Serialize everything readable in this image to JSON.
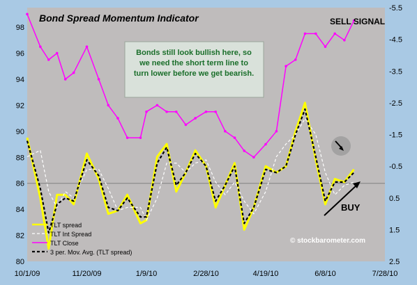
{
  "chart_data": {
    "type": "line",
    "title": "Bond Spread Momentum Indicator",
    "signal_label": "SELL SIGNAL",
    "buy_label": "BUY",
    "watermark": "© stockbarometer.com",
    "annotation": "Bonds still look bullish here, so we need the short term line to turn lower before we get bearish.",
    "annotation_lines": [
      "Bonds still look bullish here, so",
      "we need the short term line to",
      "turn lower before we get bearish."
    ],
    "x_ticks": [
      "10/1/09",
      "11/20/09",
      "1/9/10",
      "2/28/10",
      "4/19/10",
      "6/8/10",
      "7/28/10"
    ],
    "y_left_ticks": [
      "80",
      "82",
      "84",
      "86",
      "88",
      "90",
      "92",
      "94",
      "96",
      "98"
    ],
    "y_right_ticks": [
      "2.5",
      "1.5",
      "0.5",
      "-0.5",
      "-1.5",
      "-2.5",
      "-3.5",
      "-4.5",
      "-5.5"
    ],
    "y_left_range": [
      80,
      99.5
    ],
    "y_right_range": [
      2.5,
      -5.5
    ],
    "y_right_reversed": true,
    "x_range": [
      "10/1/09",
      "7/28/10"
    ],
    "gridlines": "horizontal at 86 only",
    "legend_position": "bottom-left",
    "series": [
      {
        "name": "TLT spread",
        "axis": "right",
        "color": "#ffff00",
        "dates": [
          "10/1/09",
          "10/12/09",
          "10/19/09",
          "10/26/09",
          "11/2/09",
          "11/9/09",
          "11/20/09",
          "11/30/09",
          "12/8/09",
          "12/16/09",
          "12/24/09",
          "1/4/10",
          "1/9/10",
          "1/18/10",
          "1/26/10",
          "2/3/10",
          "2/11/10",
          "2/19/10",
          "2/28/10",
          "3/8/10",
          "3/16/10",
          "3/24/10",
          "4/1/10",
          "4/9/10",
          "4/19/10",
          "4/28/10",
          "5/6/10",
          "5/14/10",
          "5/22/10",
          "5/31/10",
          "6/8/10",
          "6/16/10",
          "6/24/10",
          "7/2/10"
        ],
        "values": [
          -1.4,
          0.5,
          2.1,
          0.4,
          0.4,
          0.7,
          -0.9,
          -0.1,
          1.0,
          0.9,
          0.4,
          1.3,
          1.2,
          -0.8,
          -1.2,
          0.3,
          -0.3,
          -1.0,
          -0.5,
          0.8,
          0.1,
          -0.6,
          1.5,
          0.8,
          -0.5,
          -0.3,
          -0.5,
          -1.6,
          -2.5,
          -0.7,
          0.7,
          -0.1,
          0.0,
          -0.4
        ]
      },
      {
        "name": "TLT Int Spread",
        "axis": "right",
        "color": "#ffffff",
        "dates": [
          "10/1/09",
          "10/12/09",
          "10/19/09",
          "10/26/09",
          "11/2/09",
          "11/9/09",
          "11/20/09",
          "11/30/09",
          "12/8/09",
          "12/16/09",
          "12/24/09",
          "1/4/10",
          "1/9/10",
          "1/18/10",
          "1/26/10",
          "2/3/10",
          "2/11/10",
          "2/19/10",
          "2/28/10",
          "3/8/10",
          "3/16/10",
          "3/24/10",
          "4/1/10",
          "4/9/10",
          "4/19/10",
          "4/28/10",
          "5/6/10",
          "5/14/10",
          "5/22/10",
          "5/31/10",
          "6/8/10",
          "6/16/10",
          "6/24/10",
          "7/2/10"
        ],
        "values": [
          -0.8,
          -1.0,
          0.3,
          0.8,
          0.3,
          0.5,
          -0.4,
          -0.4,
          0.2,
          0.9,
          0.8,
          0.8,
          1.2,
          0.5,
          -0.6,
          -0.6,
          -0.3,
          -0.6,
          -0.7,
          0.0,
          0.4,
          0.0,
          0.6,
          1.0,
          0.3,
          -0.8,
          -1.2,
          -1.5,
          -2.0,
          -1.5,
          -0.3,
          0.4,
          0.1,
          0.0
        ]
      },
      {
        "name": "TLT Close",
        "axis": "left",
        "color": "#ff00ff",
        "dates": [
          "10/1/09",
          "10/12/09",
          "10/19/09",
          "10/26/09",
          "11/2/09",
          "11/9/09",
          "11/20/09",
          "11/30/09",
          "12/8/09",
          "12/16/09",
          "12/24/09",
          "1/4/10",
          "1/9/10",
          "1/18/10",
          "1/26/10",
          "2/3/10",
          "2/11/10",
          "2/19/10",
          "2/28/10",
          "3/8/10",
          "3/16/10",
          "3/24/10",
          "4/1/10",
          "4/9/10",
          "4/19/10",
          "4/28/10",
          "5/6/10",
          "5/14/10",
          "5/22/10",
          "5/31/10",
          "6/8/10",
          "6/16/10",
          "6/24/10",
          "7/2/10"
        ],
        "values": [
          99.0,
          96.5,
          95.5,
          96.0,
          94.0,
          94.5,
          96.5,
          94.0,
          92.0,
          91.0,
          89.5,
          89.5,
          91.5,
          92.0,
          91.5,
          91.5,
          90.5,
          91.0,
          91.5,
          91.5,
          90.0,
          89.5,
          88.5,
          88.0,
          89.0,
          90.0,
          95.0,
          95.5,
          97.5,
          97.5,
          96.5,
          97.5,
          97.0,
          98.5
        ]
      },
      {
        "name": "3 per. Mov. Avg. (TLT spread)",
        "axis": "right",
        "color": "#000000",
        "dates": [
          "10/1/09",
          "10/12/09",
          "10/19/09",
          "10/26/09",
          "11/2/09",
          "11/9/09",
          "11/20/09",
          "11/30/09",
          "12/8/09",
          "12/16/09",
          "12/24/09",
          "1/4/10",
          "1/9/10",
          "1/18/10",
          "1/26/10",
          "2/3/10",
          "2/11/10",
          "2/19/10",
          "2/28/10",
          "3/8/10",
          "3/16/10",
          "3/24/10",
          "4/1/10",
          "4/9/10",
          "4/19/10",
          "4/28/10",
          "5/6/10",
          "5/14/10",
          "5/22/10",
          "5/31/10",
          "6/8/10",
          "6/16/10",
          "6/24/10",
          "7/2/10"
        ],
        "values": [
          -1.3,
          0.2,
          1.6,
          0.7,
          0.5,
          0.6,
          -0.7,
          -0.2,
          0.8,
          0.9,
          0.5,
          1.1,
          1.1,
          -0.6,
          -1.1,
          0.1,
          -0.3,
          -0.9,
          -0.5,
          0.6,
          0.1,
          -0.5,
          1.3,
          0.8,
          -0.4,
          -0.3,
          -0.5,
          -1.5,
          -2.3,
          -0.8,
          0.6,
          0.0,
          0.0,
          -0.3
        ]
      }
    ]
  }
}
